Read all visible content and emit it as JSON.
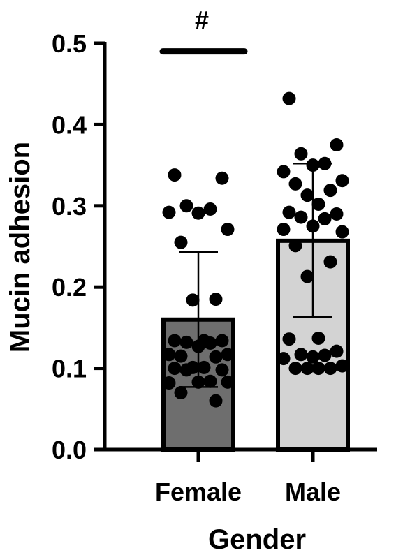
{
  "chart_data": {
    "type": "bar",
    "xlabel": "Gender",
    "ylabel": "Mucin adhesion",
    "ylim": [
      0,
      0.5
    ],
    "yticks": [
      "0.0",
      "0.1",
      "0.2",
      "0.3",
      "0.4",
      "0.5"
    ],
    "categories": [
      "Female",
      "Male"
    ],
    "values": [
      0.16,
      0.257
    ],
    "error_low": [
      0.077,
      0.163
    ],
    "error_high": [
      0.243,
      0.352
    ],
    "bar_colors": [
      "#6e6e6e",
      "#d3d3d3"
    ],
    "points": [
      [
        0.338,
        0.334,
        0.3,
        0.296,
        0.291,
        0.292,
        0.271,
        0.255,
        0.185,
        0.184,
        0.134,
        0.134,
        0.134,
        0.132,
        0.131,
        0.127,
        0.117,
        0.117,
        0.115,
        0.114,
        0.101,
        0.101,
        0.1,
        0.098,
        0.098,
        0.084,
        0.083,
        0.082,
        0.083,
        0.07,
        0.06
      ],
      [
        0.432,
        0.375,
        0.364,
        0.352,
        0.35,
        0.342,
        0.331,
        0.327,
        0.319,
        0.313,
        0.302,
        0.292,
        0.29,
        0.286,
        0.284,
        0.275,
        0.271,
        0.268,
        0.251,
        0.231,
        0.213,
        0.137,
        0.136,
        0.121,
        0.117,
        0.116,
        0.114,
        0.112,
        0.103,
        0.1,
        0.1,
        0.1,
        0.1
      ]
    ],
    "significance": {
      "symbol": "#",
      "range": [
        0.49,
        0.49
      ]
    },
    "grid": false
  }
}
